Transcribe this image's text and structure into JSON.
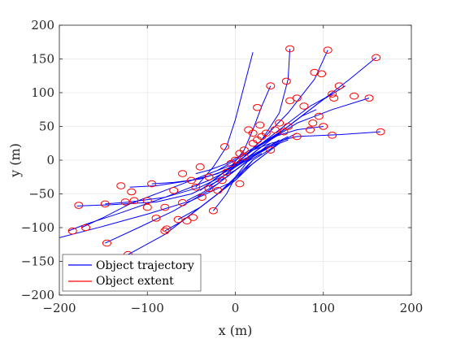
{
  "chart_data": {
    "type": "line",
    "title": "",
    "xlabel": "x (m)",
    "ylabel": "y (m)",
    "xlim": [
      -200,
      200
    ],
    "ylim": [
      -200,
      200
    ],
    "xticks": [
      -200,
      -100,
      0,
      100,
      200
    ],
    "yticks": [
      -200,
      -150,
      -100,
      -50,
      0,
      50,
      100,
      150,
      200
    ],
    "grid": true,
    "legend_position": "bottom-left",
    "colors": {
      "trajectory": "#0000ff",
      "extent": "#ff0000",
      "grid": "#e6e6e6",
      "axis": "#262626"
    },
    "legend": [
      {
        "name": "Object trajectory",
        "kind": "trajectory"
      },
      {
        "name": "Object extent",
        "kind": "extent"
      }
    ],
    "series": [
      {
        "x": [
          -200,
          -150,
          -100,
          -50,
          0,
          10,
          20
        ],
        "y": [
          -115,
          -98,
          -80,
          -60,
          -30,
          -15,
          0
        ]
      },
      {
        "x": [
          -190,
          -170,
          -130,
          -80,
          -30,
          0,
          20
        ],
        "y": [
          -105,
          -95,
          -78,
          -55,
          -30,
          -10,
          5
        ]
      },
      {
        "x": [
          -180,
          -140,
          -90,
          -50,
          -10,
          10,
          30
        ],
        "y": [
          -68,
          -66,
          -62,
          -50,
          -25,
          -5,
          10
        ]
      },
      {
        "x": [
          -148,
          -120,
          -80,
          -40,
          0,
          20,
          40
        ],
        "y": [
          -65,
          -62,
          -55,
          -40,
          -15,
          5,
          20
        ]
      },
      {
        "x": [
          -175,
          -150,
          -120,
          -80,
          -40,
          0,
          30,
          60
        ],
        "y": [
          -100,
          -85,
          -65,
          -45,
          -25,
          -5,
          15,
          30
        ]
      },
      {
        "x": [
          -148,
          -110,
          -70,
          -30,
          0,
          30,
          60
        ],
        "y": [
          -123,
          -100,
          -75,
          -45,
          -15,
          15,
          35
        ]
      },
      {
        "x": [
          -122,
          -80,
          -50,
          -20,
          0,
          20,
          50
        ],
        "y": [
          -140,
          -110,
          -80,
          -50,
          -25,
          0,
          25
        ]
      },
      {
        "x": [
          -120,
          -90,
          -50,
          -20,
          10,
          40,
          70
        ],
        "y": [
          -40,
          -38,
          -30,
          -20,
          0,
          20,
          40
        ]
      },
      {
        "x": [
          -95,
          -70,
          -40,
          -10,
          20,
          40
        ],
        "y": [
          -35,
          -33,
          -28,
          -15,
          5,
          25
        ]
      },
      {
        "x": [
          -80,
          -60,
          -30,
          0,
          20,
          40
        ],
        "y": [
          -105,
          -90,
          -60,
          -30,
          -5,
          15
        ]
      },
      {
        "x": [
          -65,
          -40,
          -15,
          10,
          30,
          50
        ],
        "y": [
          -88,
          -70,
          -45,
          -15,
          5,
          25
        ]
      },
      {
        "x": [
          -55,
          -40,
          -20,
          0,
          25,
          50
        ],
        "y": [
          -60,
          -50,
          -35,
          -15,
          10,
          30
        ]
      },
      {
        "x": [
          -45,
          -30,
          -10,
          10,
          30
        ],
        "y": [
          -20,
          -15,
          -5,
          10,
          25
        ]
      },
      {
        "x": [
          -25,
          -10,
          0,
          15,
          35
        ],
        "y": [
          -75,
          -50,
          -25,
          0,
          20
        ]
      },
      {
        "x": [
          20,
          10,
          0,
          -10,
          -25,
          -45
        ],
        "y": [
          160,
          110,
          60,
          20,
          -10,
          -40
        ]
      },
      {
        "x": [
          62,
          60,
          50,
          30,
          10,
          -10,
          -30
        ],
        "y": [
          165,
          120,
          70,
          30,
          5,
          -20,
          -40
        ]
      },
      {
        "x": [
          105,
          90,
          60,
          30,
          10,
          -10,
          -40
        ],
        "y": [
          163,
          120,
          70,
          30,
          5,
          -15,
          -45
        ]
      },
      {
        "x": [
          160,
          130,
          90,
          50,
          20,
          0,
          -30
        ],
        "y": [
          152,
          120,
          80,
          40,
          15,
          -5,
          -35
        ]
      },
      {
        "x": [
          165,
          120,
          70,
          40,
          20,
          0,
          -20
        ],
        "y": [
          42,
          38,
          35,
          25,
          15,
          0,
          -15
        ]
      },
      {
        "x": [
          152,
          110,
          70,
          40,
          20,
          -10
        ],
        "y": [
          92,
          75,
          55,
          30,
          10,
          -20
        ]
      },
      {
        "x": [
          125,
          100,
          70,
          40,
          15,
          -15
        ],
        "y": [
          110,
          90,
          60,
          30,
          5,
          -25
        ]
      },
      {
        "x": [
          110,
          85,
          60,
          35,
          10,
          -20
        ],
        "y": [
          98,
          80,
          55,
          30,
          5,
          -25
        ]
      },
      {
        "x": [
          92,
          75,
          55,
          30,
          10,
          -20
        ],
        "y": [
          75,
          65,
          45,
          25,
          5,
          -25
        ]
      },
      {
        "x": [
          40,
          30,
          20,
          10,
          -5,
          -25
        ],
        "y": [
          110,
          80,
          45,
          15,
          -10,
          -30
        ]
      },
      {
        "x": [
          100,
          70,
          45,
          20,
          0,
          -25
        ],
        "y": [
          50,
          45,
          35,
          15,
          -5,
          -30
        ]
      }
    ],
    "extents": [
      [
        -185,
        -105
      ],
      [
        -170,
        -100
      ],
      [
        -178,
        -67
      ],
      [
        -148,
        -65
      ],
      [
        -146,
        -123
      ],
      [
        -122,
        -140
      ],
      [
        -125,
        -62
      ],
      [
        -118,
        -47
      ],
      [
        -95,
        -35
      ],
      [
        -100,
        -70
      ],
      [
        -90,
        -86
      ],
      [
        -80,
        -105
      ],
      [
        -78,
        -102
      ],
      [
        -60,
        -63
      ],
      [
        -65,
        -88
      ],
      [
        -55,
        -90
      ],
      [
        -48,
        -85
      ],
      [
        -45,
        -40
      ],
      [
        -38,
        -55
      ],
      [
        -30,
        -42
      ],
      [
        -25,
        -75
      ],
      [
        -20,
        -45
      ],
      [
        -10,
        -18
      ],
      [
        -5,
        -5
      ],
      [
        0,
        0
      ],
      [
        5,
        10
      ],
      [
        10,
        15
      ],
      [
        20,
        25
      ],
      [
        25,
        30
      ],
      [
        30,
        35
      ],
      [
        35,
        40
      ],
      [
        45,
        45
      ],
      [
        50,
        55
      ],
      [
        55,
        42
      ],
      [
        60,
        50
      ],
      [
        62,
        165
      ],
      [
        58,
        117
      ],
      [
        62,
        88
      ],
      [
        70,
        92
      ],
      [
        78,
        80
      ],
      [
        90,
        130
      ],
      [
        98,
        128
      ],
      [
        105,
        163
      ],
      [
        110,
        98
      ],
      [
        112,
        92
      ],
      [
        118,
        110
      ],
      [
        135,
        95
      ],
      [
        160,
        152
      ],
      [
        152,
        92
      ],
      [
        165,
        42
      ],
      [
        110,
        37
      ],
      [
        95,
        65
      ],
      [
        88,
        55
      ],
      [
        40,
        110
      ],
      [
        25,
        78
      ],
      [
        28,
        52
      ],
      [
        -130,
        -38
      ],
      [
        -115,
        -60
      ],
      [
        -100,
        -60
      ],
      [
        -70,
        -45
      ],
      [
        -50,
        -30
      ],
      [
        -40,
        -10
      ],
      [
        -30,
        -25
      ],
      [
        -15,
        -30
      ],
      [
        10,
        5
      ],
      [
        20,
        40
      ],
      [
        40,
        15
      ],
      [
        70,
        35
      ],
      [
        85,
        45
      ],
      [
        100,
        50
      ],
      [
        -60,
        -20
      ],
      [
        -80,
        -70
      ],
      [
        5,
        -35
      ],
      [
        15,
        45
      ],
      [
        -12,
        20
      ]
    ]
  }
}
